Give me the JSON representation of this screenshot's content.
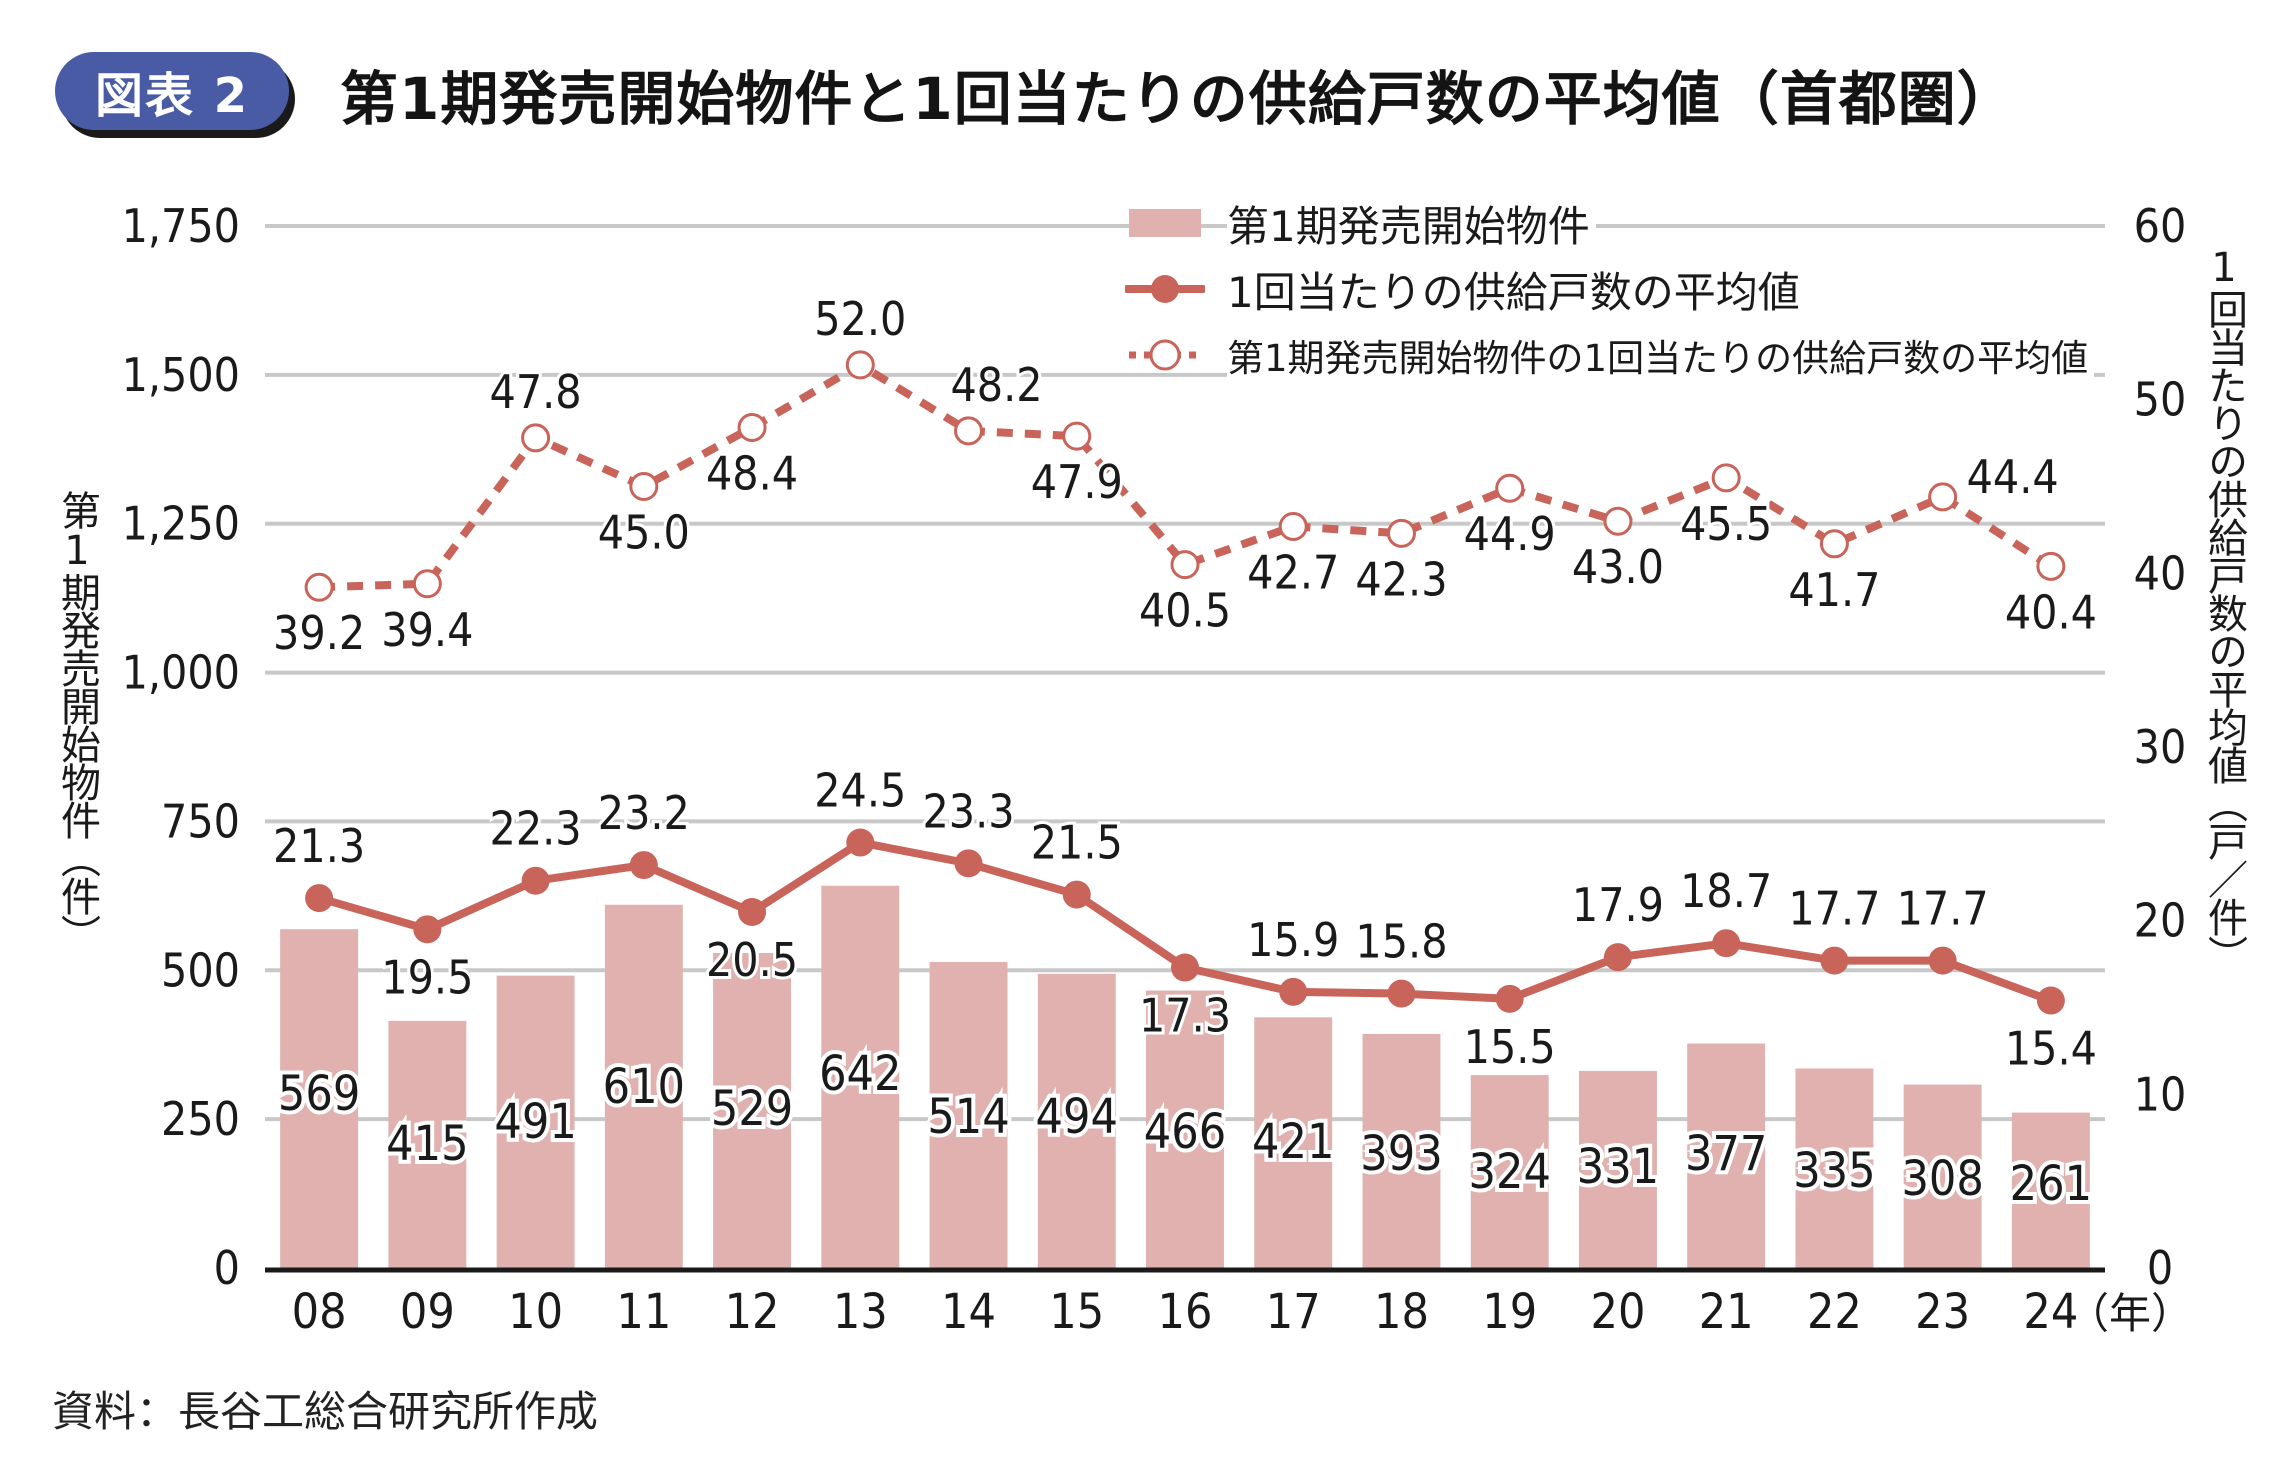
{
  "header": {
    "badge": "図表 2",
    "title": "第1期発売開始物件と1回当たりの供給戸数の平均値（首都圏）"
  },
  "source": "資料：長谷工総合研究所作成",
  "colors": {
    "bar": "#e0b1ae",
    "line": "#c9645a",
    "grid": "#c8c8c8",
    "axis": "#1a1a1a",
    "badge": "#4a5ba6"
  },
  "legend": [
    {
      "label": "第1期発売開始物件",
      "type": "bar"
    },
    {
      "label": "1回当たりの供給戸数の平均値",
      "type": "line-solid"
    },
    {
      "label": "第1期発売開始物件の1回当たりの供給戸数の平均値",
      "type": "line-dashed"
    }
  ],
  "chart_data": {
    "type": "bar",
    "title": "第1期発売開始物件と1回当たりの供給戸数の平均値（首都圏）",
    "categories": [
      "08",
      "09",
      "10",
      "11",
      "12",
      "13",
      "14",
      "15",
      "16",
      "17",
      "18",
      "19",
      "20",
      "21",
      "22",
      "23",
      "24"
    ],
    "x_unit": "（年）",
    "ylabel_left": "第1期発売開始物件（件）",
    "ylabel_right": "1回当たりの供給戸数の平均値（戸／件）",
    "ylim_left": [
      0,
      1750
    ],
    "yticks_left": [
      0,
      250,
      500,
      750,
      1000,
      1250,
      1500,
      1750
    ],
    "yticks_left_labels": [
      "0",
      "250",
      "500",
      "750",
      "1,000",
      "1,250",
      "1,500",
      "1,750"
    ],
    "ylim_right": [
      0,
      60
    ],
    "yticks_right": [
      0,
      10,
      20,
      30,
      40,
      50,
      60
    ],
    "grid": true,
    "legend_position": "top-right",
    "series": [
      {
        "name": "第1期発売開始物件",
        "type": "bar",
        "axis": "left",
        "values": [
          569,
          415,
          491,
          610,
          529,
          642,
          514,
          494,
          466,
          421,
          393,
          324,
          331,
          377,
          335,
          308,
          261
        ]
      },
      {
        "name": "1回当たりの供給戸数の平均値",
        "type": "line",
        "style": "solid",
        "axis": "right",
        "values": [
          21.3,
          19.5,
          22.3,
          23.2,
          20.5,
          24.5,
          23.3,
          21.5,
          17.3,
          15.9,
          15.8,
          15.5,
          17.9,
          18.7,
          17.7,
          17.7,
          15.4
        ]
      },
      {
        "name": "第1期発売開始物件の1回当たりの供給戸数の平均値",
        "type": "line",
        "style": "dashed",
        "axis": "right",
        "values": [
          39.2,
          39.4,
          47.8,
          45.0,
          48.4,
          52.0,
          48.2,
          47.9,
          40.5,
          42.7,
          42.3,
          44.9,
          43.0,
          45.5,
          41.7,
          44.4,
          40.4
        ]
      }
    ]
  }
}
